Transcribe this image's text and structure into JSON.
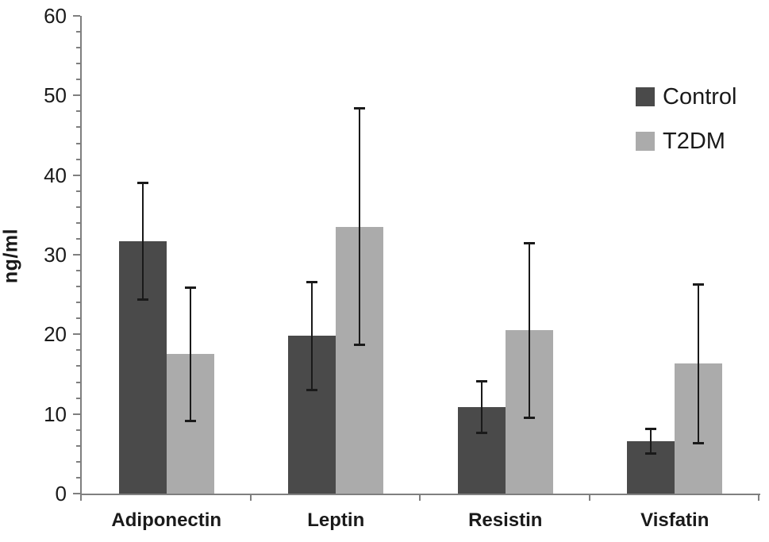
{
  "chart_data": {
    "type": "bar",
    "title": "",
    "xlabel": "",
    "ylabel": "ng/ml",
    "ylim": [
      0,
      60
    ],
    "y_ticks": [
      0,
      10,
      20,
      30,
      40,
      50,
      60
    ],
    "y_minor_step": 2,
    "grid": false,
    "categories": [
      "Adiponectin",
      "Leptin",
      "Resistin",
      "Visfatin"
    ],
    "series": [
      {
        "name": "Control",
        "color": "#4a4a4a",
        "values": [
          31.7,
          19.8,
          10.9,
          6.6
        ],
        "errors": [
          7.5,
          6.9,
          3.4,
          1.7
        ]
      },
      {
        "name": "T2DM",
        "color": "#ababab",
        "values": [
          17.5,
          33.5,
          20.5,
          16.3
        ],
        "errors": [
          8.5,
          15.0,
          11.1,
          10.1
        ]
      }
    ],
    "legend_position": "top-right",
    "axis_color": "#7f7f7f",
    "error_bar_color": "#1a1a1a",
    "background": "#ffffff"
  }
}
